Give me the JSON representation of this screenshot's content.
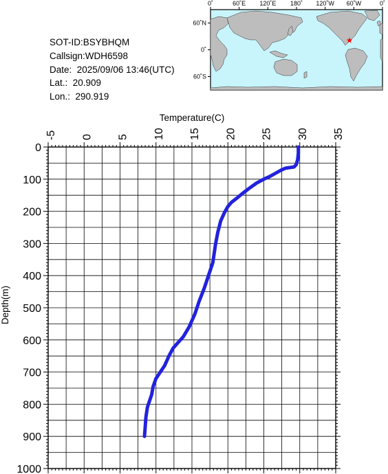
{
  "info": {
    "sot_id": "SOT-ID:BSYBHQM",
    "callsign": "Callsign:WDH6598",
    "date": "Date:  2025/09/06 13:46(UTC)",
    "lat": "Lat.:  20.909",
    "lon": "Lon.:  290.919"
  },
  "map": {
    "lon_labels": [
      "0˚",
      "60˚E",
      "120˚E",
      "180˚",
      "120˚W",
      "60˚W",
      "0˚"
    ],
    "lat_labels": [
      "60˚N",
      "0˚",
      "60˚S"
    ],
    "ocean_color": "#c8f4fc",
    "land_color": "#bdbdbd",
    "marker_color": "#ff0000",
    "marker": {
      "lat": 20.909,
      "lon": 290.919
    }
  },
  "chart_data": {
    "type": "line",
    "xlabel": "Temperature(C)",
    "ylabel": "Depth(m)",
    "xlim": [
      -5,
      35
    ],
    "ylim": [
      0,
      1000
    ],
    "x_ticks": [
      "-5",
      "0",
      "5",
      "10",
      "15",
      "20",
      "25",
      "30",
      "35"
    ],
    "y_ticks": [
      "0",
      "100",
      "200",
      "300",
      "400",
      "500",
      "600",
      "700",
      "800",
      "900",
      "1000"
    ],
    "line_color": "#2222dd",
    "series": [
      {
        "points": [
          [
            29.8,
            0
          ],
          [
            29.8,
            20
          ],
          [
            29.7,
            40
          ],
          [
            29.5,
            55
          ],
          [
            29.2,
            62
          ],
          [
            28.0,
            66
          ],
          [
            27.4,
            72
          ],
          [
            26.6,
            82
          ],
          [
            25.8,
            92
          ],
          [
            25.0,
            100
          ],
          [
            24.0,
            112
          ],
          [
            23.0,
            128
          ],
          [
            22.0,
            145
          ],
          [
            21.2,
            160
          ],
          [
            20.5,
            172
          ],
          [
            20.0,
            185
          ],
          [
            19.5,
            205
          ],
          [
            19.0,
            230
          ],
          [
            18.6,
            265
          ],
          [
            18.3,
            300
          ],
          [
            18.1,
            330
          ],
          [
            17.9,
            360
          ],
          [
            17.3,
            400
          ],
          [
            16.7,
            440
          ],
          [
            16.0,
            480
          ],
          [
            15.4,
            520
          ],
          [
            14.6,
            560
          ],
          [
            13.8,
            590
          ],
          [
            13.0,
            610
          ],
          [
            12.4,
            625
          ],
          [
            11.8,
            650
          ],
          [
            11.2,
            680
          ],
          [
            10.6,
            700
          ],
          [
            10.0,
            720
          ],
          [
            9.6,
            745
          ],
          [
            9.4,
            770
          ],
          [
            9.1,
            790
          ],
          [
            8.8,
            810
          ],
          [
            8.6,
            840
          ],
          [
            8.5,
            870
          ],
          [
            8.4,
            900
          ]
        ]
      }
    ]
  }
}
